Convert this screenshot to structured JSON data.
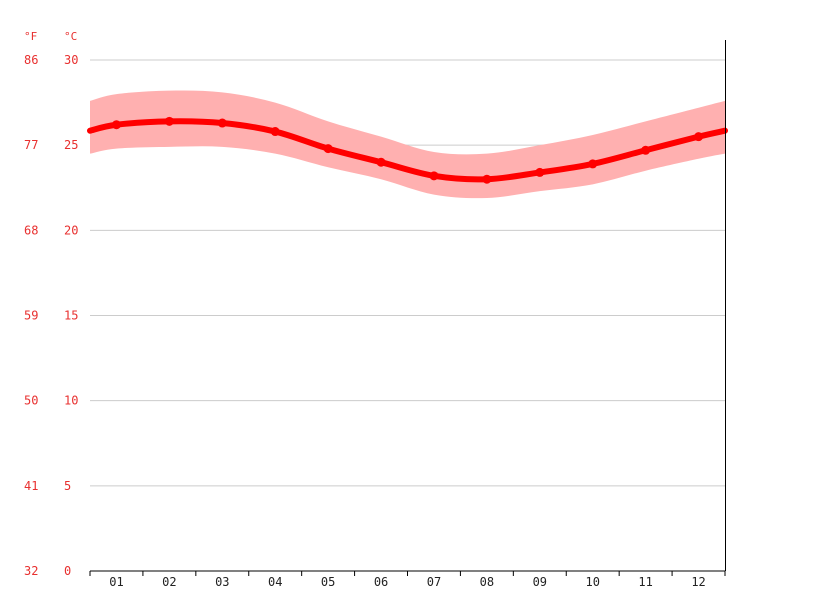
{
  "units": {
    "fahrenheit": "°F",
    "celsius": "°C"
  },
  "chart_data": {
    "type": "line",
    "categories": [
      "01",
      "02",
      "03",
      "04",
      "05",
      "06",
      "07",
      "08",
      "09",
      "10",
      "11",
      "12"
    ],
    "series": [
      {
        "values": [
          26.2,
          26.4,
          26.3,
          25.8,
          24.8,
          24.0,
          23.2,
          23.0,
          23.4,
          23.9,
          24.7,
          25.5
        ]
      }
    ],
    "band": {
      "upper": [
        28.0,
        28.2,
        28.1,
        27.5,
        26.4,
        25.5,
        24.6,
        24.5,
        25.0,
        25.6,
        26.4,
        27.2
      ],
      "lower": [
        24.8,
        24.9,
        24.9,
        24.5,
        23.7,
        23.0,
        22.1,
        21.9,
        22.3,
        22.7,
        23.5,
        24.2
      ]
    },
    "ylim": [
      0,
      30
    ],
    "yticks_celsius": [
      "0",
      "5",
      "10",
      "15",
      "20",
      "25",
      "30"
    ],
    "yticks_fahrenheit": [
      "32",
      "41",
      "50",
      "59",
      "68",
      "77",
      "86"
    ],
    "grid": true,
    "colors": {
      "line": "#ff0000",
      "band": "#ffb0b0",
      "grid": "#cccccc",
      "axis_text": "#e8302f"
    }
  }
}
